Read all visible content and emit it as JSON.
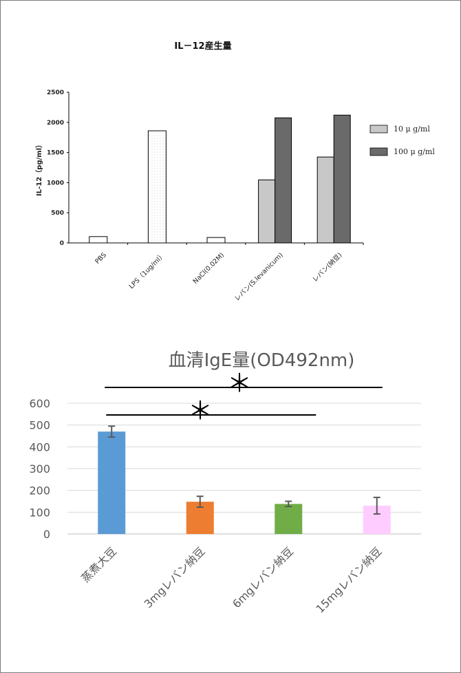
{
  "chart_data": [
    {
      "type": "bar",
      "title": "IL－12産生量",
      "ylabel": "IL-12（pg/ml）",
      "ylim": [
        0,
        2500
      ],
      "yticks": [
        0,
        500,
        1000,
        1500,
        2000,
        2500
      ],
      "categories": [
        "PBS",
        "LPS（1ug/ml）",
        "NaCl(0.02M)",
        "レバン(S.levanicum)",
        "レバン(納豆)"
      ],
      "single_values": [
        105,
        1860,
        90,
        null,
        null
      ],
      "series": [
        {
          "name": "10 μ g/ml",
          "values": [
            null,
            null,
            null,
            1045,
            1425
          ],
          "color": "#c8c8c8"
        },
        {
          "name": "100 μ g/ml",
          "values": [
            null,
            null,
            null,
            2075,
            2120
          ],
          "color": "#6a6a6a"
        }
      ],
      "legend_position": "right",
      "grid": false
    },
    {
      "type": "bar",
      "title": "血清IgE量(OD492nm)",
      "ylim": [
        0,
        600
      ],
      "yticks": [
        0,
        100,
        200,
        300,
        400,
        500,
        600
      ],
      "categories": [
        "蒸煮大豆",
        "3mgレバン納豆",
        "6mgレバン納豆",
        "15mgレバン納豆"
      ],
      "values": [
        470,
        148,
        138,
        130
      ],
      "error": [
        25,
        25,
        12,
        38
      ],
      "colors": [
        "#5b9bd5",
        "#ed7d31",
        "#70ad47",
        "#ffccff"
      ],
      "grid": true,
      "significance": [
        {
          "from": "蒸煮大豆",
          "to": "15mgレバン納豆",
          "label": "＊"
        },
        {
          "from": "蒸煮大豆",
          "to": "6mgレバン納豆",
          "label": "＊"
        }
      ]
    }
  ]
}
